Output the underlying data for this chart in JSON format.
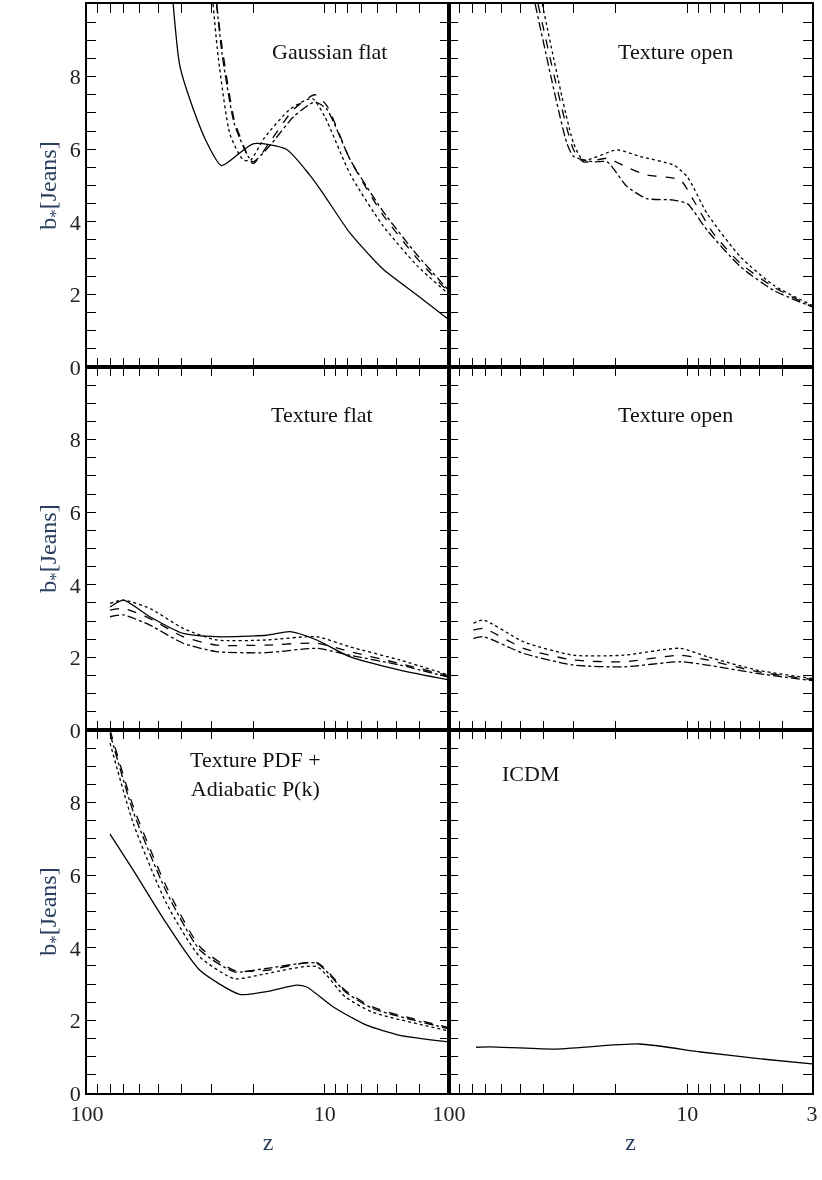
{
  "chart_data": [
    {
      "type": "line",
      "title": "Gaussian flat",
      "ylabel": "b$_{*}$[Jeans]",
      "log": "x",
      "tick_labels": "y",
      "xlim": [
        100,
        3
      ],
      "ylim": [
        0,
        10
      ],
      "xticks": [
        100,
        {
          "value": 90,
          "label": null
        },
        {
          "value": 80,
          "label": null
        },
        {
          "value": 70,
          "label": null
        },
        {
          "value": 60,
          "label": null
        },
        {
          "value": 50,
          "label": null
        },
        {
          "value": 40,
          "label": null
        },
        {
          "value": 30,
          "label": null
        },
        {
          "value": 20,
          "label": null
        },
        10,
        {
          "value": 9,
          "label": null
        },
        {
          "value": 8,
          "label": null
        },
        {
          "value": 7,
          "label": null
        },
        {
          "value": 6,
          "label": null
        },
        {
          "value": 5,
          "label": null
        },
        {
          "value": 4,
          "label": null
        }
      ],
      "yticks": [
        0,
        {
          "value": 0.5,
          "label": null
        },
        {
          "value": 1,
          "label": null
        },
        {
          "value": 1.5,
          "label": null
        },
        2,
        {
          "value": 2.5,
          "label": null
        },
        {
          "value": 3,
          "label": null
        },
        {
          "value": 3.5,
          "label": null
        },
        4,
        {
          "value": 4.5,
          "label": null
        },
        {
          "value": 5,
          "label": null
        },
        {
          "value": 5.5,
          "label": null
        },
        6,
        {
          "value": 6.5,
          "label": null
        },
        {
          "value": 7,
          "label": null
        },
        {
          "value": 7.5,
          "label": null
        },
        8,
        {
          "value": 8.5,
          "label": null
        },
        {
          "value": 9,
          "label": null
        },
        {
          "value": 9.5,
          "label": null
        }
      ],
      "series": [
        {
          "color": "#000000",
          "line_style": "solid",
          "x": [
            43.4,
            40.7,
            35.7,
            31.4,
            27.2,
            20,
            14.5,
            11.6,
            10.2,
            7.85,
            5.69,
            4.12,
            3
          ],
          "values": [
            10,
            8.3,
            7.1,
            6.2,
            5.55,
            6.15,
            6.0,
            5.3,
            4.8,
            3.7,
            2.7,
            2.0,
            1.3
          ]
        },
        {
          "color": "#000000",
          "line_style": "dashed",
          "x": [
            28.5,
            27,
            24,
            21,
            20,
            17,
            13.5,
            11,
            9.8,
            7.8,
            5.7,
            4.1,
            3
          ],
          "values": [
            10,
            8.8,
            6.8,
            5.8,
            5.6,
            6.2,
            7.1,
            7.5,
            7.2,
            5.7,
            4.2,
            3.0,
            2.05
          ]
        },
        {
          "color": "#000000",
          "line_style": "dashdot",
          "x": [
            28.5,
            27,
            24,
            21,
            20,
            17,
            13.5,
            11,
            9.8,
            7.8,
            5.7,
            4.1,
            3
          ],
          "values": [
            10,
            8.6,
            6.7,
            5.8,
            5.65,
            6.1,
            6.9,
            7.3,
            7.1,
            5.7,
            4.3,
            3.1,
            2.1
          ]
        },
        {
          "color": "#000000",
          "line_style": "dotted",
          "x": [
            29.5,
            28,
            25,
            22,
            20.5,
            18,
            14,
            11.3,
            10,
            7.8,
            5.7,
            4.1,
            3
          ],
          "values": [
            10,
            8.5,
            6.4,
            5.7,
            5.7,
            6.3,
            7.1,
            7.4,
            6.9,
            5.3,
            3.9,
            2.8,
            2.0
          ]
        }
      ]
    },
    {
      "type": "line",
      "title": "Texture open",
      "log": "x",
      "tick_labels": false,
      "xlim": [
        100,
        3
      ],
      "ylim": [
        0,
        10
      ],
      "xticks": [
        100,
        {
          "value": 90,
          "label": null
        },
        {
          "value": 80,
          "label": null
        },
        {
          "value": 70,
          "label": null
        },
        {
          "value": 60,
          "label": null
        },
        {
          "value": 50,
          "label": null
        },
        {
          "value": 40,
          "label": null
        },
        {
          "value": 30,
          "label": null
        },
        {
          "value": 20,
          "label": null
        },
        10,
        {
          "value": 9,
          "label": null
        },
        {
          "value": 8,
          "label": null
        },
        {
          "value": 7,
          "label": null
        },
        {
          "value": 6,
          "label": null
        },
        {
          "value": 5,
          "label": null
        },
        {
          "value": 4,
          "label": null
        },
        3
      ],
      "yticks": [
        0,
        {
          "value": 0.5,
          "label": null
        },
        {
          "value": 1,
          "label": null
        },
        {
          "value": 1.5,
          "label": null
        },
        2,
        {
          "value": 2.5,
          "label": null
        },
        {
          "value": 3,
          "label": null
        },
        {
          "value": 3.5,
          "label": null
        },
        4,
        {
          "value": 4.5,
          "label": null
        },
        {
          "value": 5,
          "label": null
        },
        {
          "value": 5.5,
          "label": null
        },
        6,
        {
          "value": 6.5,
          "label": null
        },
        {
          "value": 7,
          "label": null
        },
        {
          "value": 7.5,
          "label": null
        },
        8,
        {
          "value": 8.5,
          "label": null
        },
        {
          "value": 9,
          "label": null
        },
        {
          "value": 9.5,
          "label": null
        }
      ],
      "series": [
        {
          "color": "#000000",
          "line_style": "dashdot",
          "x": [
            43.5,
            32.0,
            30,
            24.8,
            21.7,
            17.9,
            14.8,
            11.4,
            10,
            8.27,
            5.98,
            4.34,
            3
          ],
          "values": [
            10,
            6.16,
            5.8,
            5.65,
            5.65,
            4.97,
            4.64,
            4.6,
            4.5,
            3.77,
            2.76,
            2.11,
            1.66
          ]
        },
        {
          "color": "#000000",
          "line_style": "dashed",
          "x": [
            42.3,
            30,
            27.3,
            21.7,
            17.9,
            14.8,
            10.7,
            9.44,
            7.78,
            5.98,
            4.34,
            3
          ],
          "values": [
            10,
            5.98,
            5.65,
            5.75,
            5.5,
            5.29,
            5.15,
            4.6,
            3.68,
            2.85,
            2.2,
            1.66
          ]
        },
        {
          "color": "#000000",
          "line_style": "dotted",
          "x": [
            40.6,
            30,
            27.3,
            19.7,
            15.8,
            11.4,
            10,
            8.27,
            5.98,
            4.34,
            3
          ],
          "values": [
            10,
            6.16,
            5.7,
            5.98,
            5.8,
            5.56,
            5.24,
            4.23,
            3.03,
            2.25,
            1.7
          ]
        }
      ]
    },
    {
      "type": "line",
      "title": "Texture flat",
      "ylabel": "b$_{*}$[Jeans]",
      "log": "x",
      "tick_labels": "y",
      "xlim": [
        100,
        3
      ],
      "ylim": [
        0,
        10
      ],
      "xticks": [
        100,
        {
          "value": 90,
          "label": null
        },
        {
          "value": 80,
          "label": null
        },
        {
          "value": 70,
          "label": null
        },
        {
          "value": 60,
          "label": null
        },
        {
          "value": 50,
          "label": null
        },
        {
          "value": 40,
          "label": null
        },
        {
          "value": 30,
          "label": null
        },
        {
          "value": 20,
          "label": null
        },
        10,
        {
          "value": 9,
          "label": null
        },
        {
          "value": 8,
          "label": null
        },
        {
          "value": 7,
          "label": null
        },
        {
          "value": 6,
          "label": null
        },
        {
          "value": 5,
          "label": null
        },
        {
          "value": 4,
          "label": null
        }
      ],
      "yticks": [
        0,
        {
          "value": 0.5,
          "label": null
        },
        {
          "value": 1,
          "label": null
        },
        {
          "value": 1.5,
          "label": null
        },
        2,
        {
          "value": 2.5,
          "label": null
        },
        {
          "value": 3,
          "label": null
        },
        {
          "value": 3.5,
          "label": null
        },
        4,
        {
          "value": 4.5,
          "label": null
        },
        {
          "value": 5,
          "label": null
        },
        {
          "value": 5.5,
          "label": null
        },
        6,
        {
          "value": 6.5,
          "label": null
        },
        {
          "value": 7,
          "label": null
        },
        {
          "value": 7.5,
          "label": null
        },
        8,
        {
          "value": 8.5,
          "label": null
        },
        {
          "value": 9,
          "label": null
        },
        {
          "value": 9.5,
          "label": null
        }
      ],
      "series": [
        {
          "color": "#000000",
          "line_style": "solid",
          "x": [
            80,
            70.3,
            54.4,
            39.4,
            28.5,
            17.6,
            14.0,
            10.8,
            7.85,
            4.83,
            3
          ],
          "values": [
            3.39,
            3.58,
            3.12,
            2.66,
            2.57,
            2.61,
            2.71,
            2.48,
            2.02,
            1.65,
            1.38
          ]
        },
        {
          "color": "#000000",
          "line_style": "dotted",
          "x": [
            80,
            70.3,
            54.4,
            39.4,
            28.5,
            17.6,
            10.8,
            7.85,
            4.83,
            3
          ],
          "values": [
            3.49,
            3.58,
            3.35,
            2.8,
            2.48,
            2.48,
            2.57,
            2.29,
            1.93,
            1.51
          ]
        },
        {
          "color": "#000000",
          "line_style": "dashed",
          "x": [
            80,
            70.3,
            54.4,
            39.4,
            28.5,
            17.6,
            10.8,
            7.85,
            4.83,
            3
          ],
          "values": [
            3.3,
            3.35,
            3.07,
            2.57,
            2.34,
            2.34,
            2.39,
            2.16,
            1.83,
            1.49
          ]
        },
        {
          "color": "#000000",
          "line_style": "dashdot",
          "x": [
            80,
            70.3,
            54.4,
            39.4,
            28.5,
            17.6,
            10.8,
            7.85,
            4.83,
            3
          ],
          "values": [
            3.12,
            3.17,
            2.89,
            2.39,
            2.16,
            2.13,
            2.25,
            2.06,
            1.79,
            1.45
          ]
        }
      ]
    },
    {
      "type": "line",
      "title": "Texture open",
      "log": "x",
      "tick_labels": false,
      "xlim": [
        100,
        3
      ],
      "ylim": [
        0,
        10
      ],
      "xticks": [
        100,
        {
          "value": 90,
          "label": null
        },
        {
          "value": 80,
          "label": null
        },
        {
          "value": 70,
          "label": null
        },
        {
          "value": 60,
          "label": null
        },
        {
          "value": 50,
          "label": null
        },
        {
          "value": 40,
          "label": null
        },
        {
          "value": 30,
          "label": null
        },
        {
          "value": 20,
          "label": null
        },
        10,
        {
          "value": 9,
          "label": null
        },
        {
          "value": 8,
          "label": null
        },
        {
          "value": 7,
          "label": null
        },
        {
          "value": 6,
          "label": null
        },
        {
          "value": 5,
          "label": null
        },
        {
          "value": 4,
          "label": null
        },
        3
      ],
      "yticks": [
        0,
        {
          "value": 0.5,
          "label": null
        },
        {
          "value": 1,
          "label": null
        },
        {
          "value": 1.5,
          "label": null
        },
        2,
        {
          "value": 2.5,
          "label": null
        },
        {
          "value": 3,
          "label": null
        },
        {
          "value": 3.5,
          "label": null
        },
        4,
        {
          "value": 4.5,
          "label": null
        },
        {
          "value": 5,
          "label": null
        },
        {
          "value": 5.5,
          "label": null
        },
        6,
        {
          "value": 6.5,
          "label": null
        },
        {
          "value": 7,
          "label": null
        },
        {
          "value": 7.5,
          "label": null
        },
        8,
        {
          "value": 8.5,
          "label": null
        },
        {
          "value": 9,
          "label": null
        },
        {
          "value": 9.5,
          "label": null
        }
      ],
      "series": [
        {
          "color": "#000000",
          "line_style": "dotted",
          "x": [
            79,
            71.7,
            48.7,
            30.1,
            18.5,
            10.7,
            8.27,
            5.1,
            3
          ],
          "values": [
            2.94,
            3.03,
            2.43,
            2.06,
            2.06,
            2.25,
            2.02,
            1.65,
            1.42
          ]
        },
        {
          "color": "#000000",
          "line_style": "dashed",
          "x": [
            79,
            71.7,
            48.7,
            30.1,
            18.5,
            10.7,
            8.27,
            5.1,
            3
          ],
          "values": [
            2.75,
            2.8,
            2.25,
            1.93,
            1.88,
            2.06,
            1.93,
            1.61,
            1.39
          ]
        },
        {
          "color": "#000000",
          "line_style": "dashdot",
          "x": [
            79,
            71.7,
            48.7,
            30.1,
            18.5,
            10.7,
            8.27,
            5.1,
            3
          ],
          "values": [
            2.52,
            2.57,
            2.11,
            1.79,
            1.74,
            1.88,
            1.79,
            1.56,
            1.36
          ]
        }
      ]
    },
    {
      "type": "line",
      "title": "Texture PDF +\nAdiabatic P(k)",
      "xlabel": "z",
      "ylabel": "b$_{*}$[Jeans]",
      "log": "x",
      "xlim": [
        100,
        3
      ],
      "ylim": [
        0,
        10
      ],
      "xticks": [
        100,
        {
          "value": 90,
          "label": null
        },
        {
          "value": 80,
          "label": null
        },
        {
          "value": 70,
          "label": null
        },
        {
          "value": 60,
          "label": null
        },
        {
          "value": 50,
          "label": null
        },
        {
          "value": 40,
          "label": null
        },
        {
          "value": 30,
          "label": null
        },
        {
          "value": 20,
          "label": null
        },
        10,
        {
          "value": 9,
          "label": null
        },
        {
          "value": 8,
          "label": null
        },
        {
          "value": 7,
          "label": null
        },
        {
          "value": 6,
          "label": null
        },
        {
          "value": 5,
          "label": null
        },
        {
          "value": 4,
          "label": null
        }
      ],
      "yticks": [
        0,
        {
          "value": 0.5,
          "label": null
        },
        {
          "value": 1,
          "label": null
        },
        {
          "value": 1.5,
          "label": null
        },
        2,
        {
          "value": 2.5,
          "label": null
        },
        {
          "value": 3,
          "label": null
        },
        {
          "value": 3.5,
          "label": null
        },
        4,
        {
          "value": 4.5,
          "label": null
        },
        {
          "value": 5,
          "label": null
        },
        {
          "value": 5.5,
          "label": null
        },
        6,
        {
          "value": 6.5,
          "label": null
        },
        {
          "value": 7,
          "label": null
        },
        {
          "value": 7.5,
          "label": null
        },
        8,
        {
          "value": 8.5,
          "label": null
        },
        {
          "value": 9,
          "label": null
        },
        {
          "value": 9.5,
          "label": null
        }
      ],
      "series": [
        {
          "color": "#000000",
          "line_style": "solid",
          "x": [
            80,
            63.9,
            46.3,
            33.5,
            22.8,
            17.6,
            13.1,
            11.9,
            9.2,
            6.67,
            4.83,
            3
          ],
          "values": [
            7.13,
            6.14,
            4.67,
            3.38,
            2.72,
            2.79,
            2.97,
            2.92,
            2.37,
            1.87,
            1.59,
            1.41
          ]
        },
        {
          "color": "#000000",
          "line_style": "dashed",
          "x": [
            80,
            63.9,
            46.3,
            33.5,
            24.0,
            17.6,
            10.8,
            8.2,
            6.3,
            3
          ],
          "values": [
            10,
            7.89,
            5.68,
            4.03,
            3.38,
            3.38,
            3.59,
            2.83,
            2.37,
            1.8
          ]
        },
        {
          "color": "#000000",
          "line_style": "dashdot",
          "x": [
            80,
            63.9,
            46.3,
            33.5,
            24.0,
            17.6,
            10.8,
            8.2,
            6.3,
            3
          ],
          "values": [
            9.9,
            7.75,
            5.54,
            3.94,
            3.34,
            3.43,
            3.57,
            2.79,
            2.33,
            1.77
          ]
        },
        {
          "color": "#000000",
          "line_style": "dotted",
          "x": [
            80,
            63.9,
            46.3,
            33.5,
            24.0,
            17.6,
            10.8,
            8.2,
            6.3,
            3
          ],
          "values": [
            9.64,
            7.43,
            5.22,
            3.75,
            3.15,
            3.29,
            3.48,
            2.65,
            2.23,
            1.71
          ]
        }
      ]
    },
    {
      "type": "line",
      "title": "ICDM",
      "xlabel": "z",
      "log": "x",
      "tick_labels": "x",
      "xlim": [
        100,
        3
      ],
      "ylim": [
        0,
        10
      ],
      "xticks": [
        100,
        {
          "value": 90,
          "label": null
        },
        {
          "value": 80,
          "label": null
        },
        {
          "value": 70,
          "label": null
        },
        {
          "value": 60,
          "label": null
        },
        {
          "value": 50,
          "label": null
        },
        {
          "value": 40,
          "label": null
        },
        {
          "value": 30,
          "label": null
        },
        {
          "value": 20,
          "label": null
        },
        10,
        {
          "value": 9,
          "label": null
        },
        {
          "value": 8,
          "label": null
        },
        {
          "value": 7,
          "label": null
        },
        {
          "value": 6,
          "label": null
        },
        {
          "value": 5,
          "label": null
        },
        {
          "value": 4,
          "label": null
        },
        3
      ],
      "yticks": [
        0,
        {
          "value": 0.5,
          "label": null
        },
        {
          "value": 1,
          "label": null
        },
        {
          "value": 1.5,
          "label": null
        },
        2,
        {
          "value": 2.5,
          "label": null
        },
        {
          "value": 3,
          "label": null
        },
        {
          "value": 3.5,
          "label": null
        },
        4,
        {
          "value": 4.5,
          "label": null
        },
        {
          "value": 5,
          "label": null
        },
        {
          "value": 5.5,
          "label": null
        },
        6,
        {
          "value": 6.5,
          "label": null
        },
        {
          "value": 7,
          "label": null
        },
        {
          "value": 7.5,
          "label": null
        },
        8,
        {
          "value": 8.5,
          "label": null
        },
        {
          "value": 9,
          "label": null
        },
        {
          "value": 9.5,
          "label": null
        }
      ],
      "series": [
        {
          "color": "#000000",
          "line_style": "solid",
          "x": [
            77,
            67,
            36.5,
            15.9,
            8.8,
            4.93,
            3
          ],
          "values": [
            1.26,
            1.27,
            1.21,
            1.35,
            1.13,
            0.94,
            0.8
          ]
        }
      ]
    }
  ]
}
